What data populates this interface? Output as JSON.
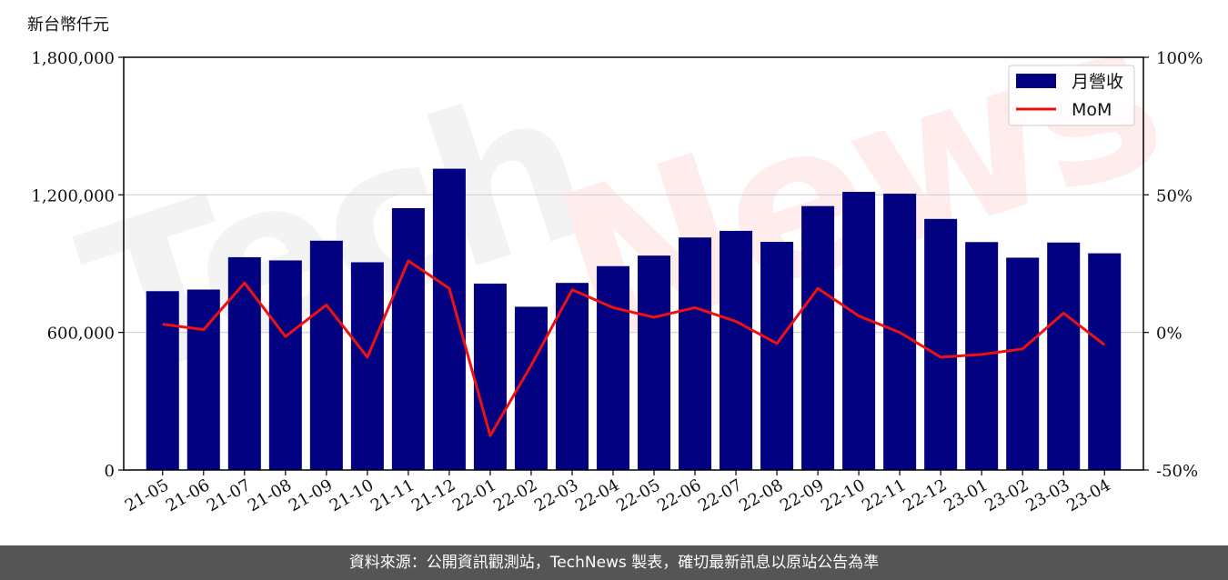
{
  "chart_data": {
    "type": "bar",
    "categories": [
      "21-05",
      "21-06",
      "21-07",
      "21-08",
      "21-09",
      "21-10",
      "21-11",
      "21-12",
      "22-01",
      "22-02",
      "22-03",
      "22-04",
      "22-05",
      "22-06",
      "22-07",
      "22-08",
      "22-09",
      "22-10",
      "22-11",
      "22-12",
      "23-01",
      "23-02",
      "23-03",
      "23-04"
    ],
    "series": [
      {
        "name": "月營收",
        "type": "bar",
        "axis": "left",
        "color": "#000080",
        "values": [
          780000,
          787000,
          928000,
          914000,
          1000000,
          906000,
          1142000,
          1314000,
          813000,
          712000,
          816000,
          889000,
          935000,
          1014000,
          1043000,
          995000,
          1151000,
          1213000,
          1205000,
          1095000,
          994000,
          926000,
          992000,
          945000
        ]
      },
      {
        "name": "MoM",
        "type": "line",
        "axis": "right",
        "color": "#ee1111",
        "values": [
          3,
          1,
          18,
          -1.5,
          10,
          -9,
          26,
          16,
          -37.5,
          -12,
          15.5,
          9,
          5.5,
          9,
          4,
          -4,
          16,
          6,
          0,
          -9,
          -8,
          -6,
          7,
          -4.5
        ]
      }
    ],
    "ylabel": "新台幣仟元",
    "ylim": [
      0,
      1800000
    ],
    "y_ticks": [
      "0",
      "600,000",
      "1,200,000",
      "1,800,000"
    ],
    "y_tick_values": [
      0,
      600000,
      1200000,
      1800000
    ],
    "y2lim": [
      -50,
      100
    ],
    "y2_ticks": [
      "-50%",
      "0%",
      "50%",
      "100%"
    ],
    "y2_tick_values": [
      -50,
      0,
      50,
      100
    ],
    "grid": "horizontal",
    "legend_position": "top-right"
  },
  "watermark": "TechNews",
  "footer": {
    "text": "資料來源：公開資訊觀測站，TechNews 製表，確切最新訊息以原站公告為準"
  }
}
